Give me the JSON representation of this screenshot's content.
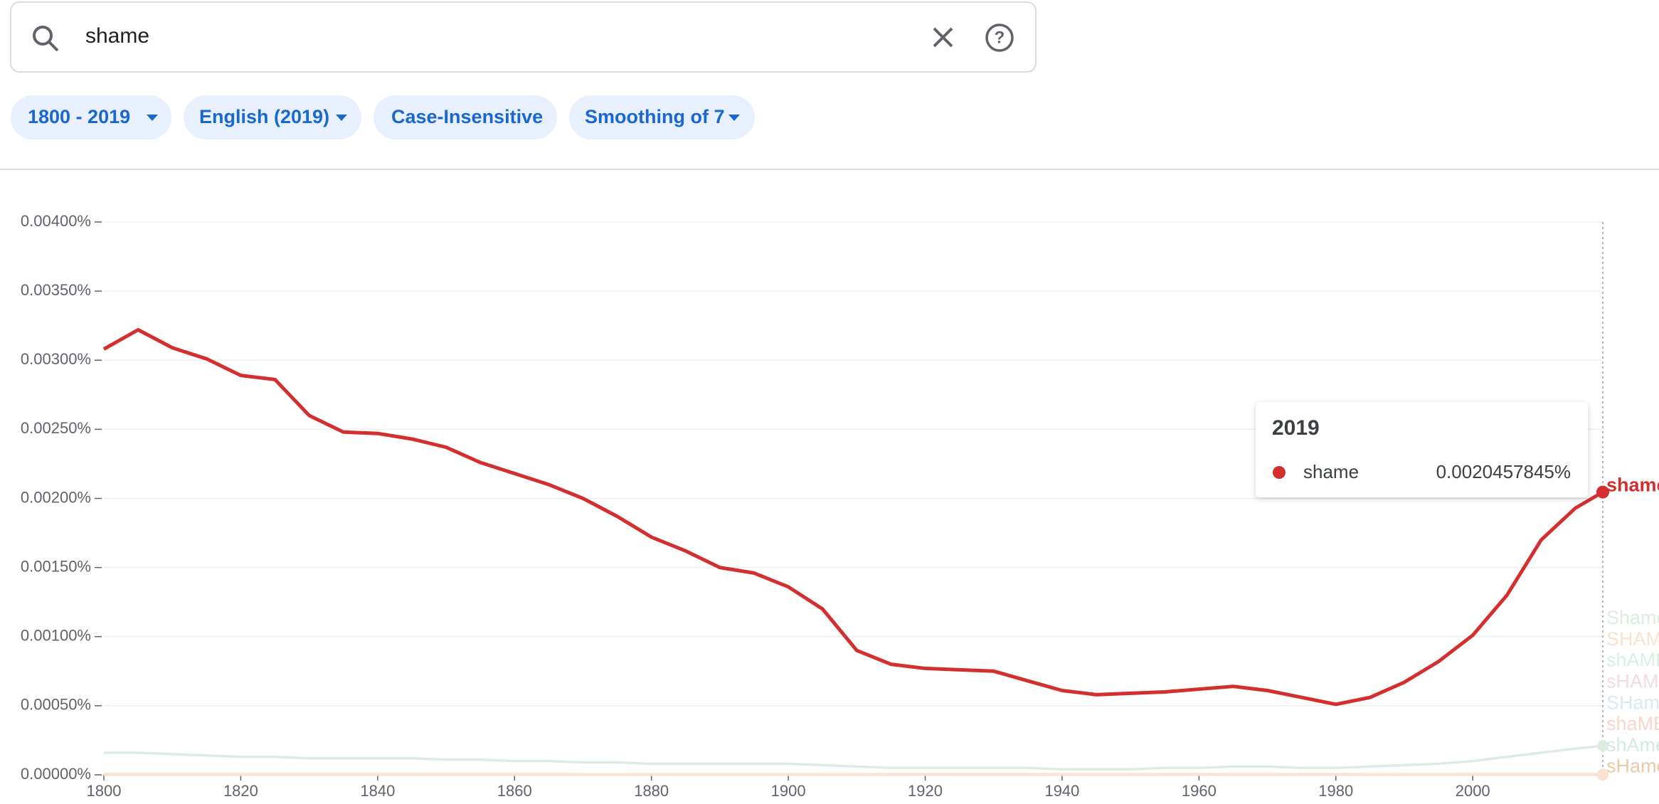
{
  "search": {
    "query": "shame"
  },
  "filters": [
    "1800 - 2019",
    "English (2019)",
    "Case-Insensitive",
    "Smoothing of 7"
  ],
  "chart_data": {
    "type": "line",
    "x": [
      1800,
      1805,
      1810,
      1815,
      1820,
      1825,
      1830,
      1835,
      1840,
      1845,
      1850,
      1855,
      1860,
      1865,
      1870,
      1875,
      1880,
      1885,
      1890,
      1895,
      1900,
      1905,
      1910,
      1915,
      1920,
      1925,
      1930,
      1935,
      1940,
      1945,
      1950,
      1955,
      1960,
      1965,
      1970,
      1975,
      1980,
      1985,
      1990,
      1995,
      2000,
      2005,
      2010,
      2015,
      2019
    ],
    "series": [
      {
        "name": "shame",
        "color": "#d32f2f",
        "values": [
          0.00308,
          0.00322,
          0.00309,
          0.00301,
          0.00289,
          0.00286,
          0.0026,
          0.00248,
          0.00247,
          0.00243,
          0.00237,
          0.00226,
          0.00218,
          0.0021,
          0.002,
          0.00187,
          0.00172,
          0.00162,
          0.0015,
          0.00146,
          0.00136,
          0.0012,
          0.0009,
          0.0008,
          0.00077,
          0.00076,
          0.00075,
          0.00068,
          0.00061,
          0.00058,
          0.00059,
          0.0006,
          0.00062,
          0.00064,
          0.00061,
          0.00056,
          0.00051,
          0.00056,
          0.00067,
          0.00082,
          0.00101,
          0.0013,
          0.0017,
          0.00193,
          0.0020457845
        ]
      },
      {
        "name": "Shame",
        "color": "#dcece1",
        "values": [
          0.00016,
          0.00016,
          0.00015,
          0.00014,
          0.00013,
          0.00013,
          0.00012,
          0.00012,
          0.00012,
          0.00012,
          0.00011,
          0.00011,
          0.0001,
          0.0001,
          9e-05,
          9e-05,
          8e-05,
          8e-05,
          8e-05,
          8e-05,
          8e-05,
          7e-05,
          6e-05,
          5e-05,
          5e-05,
          5e-05,
          5e-05,
          5e-05,
          4e-05,
          4e-05,
          4e-05,
          5e-05,
          5e-05,
          6e-05,
          6e-05,
          5e-05,
          5e-05,
          6e-05,
          7e-05,
          8e-05,
          0.0001,
          0.00013,
          0.00016,
          0.00019,
          0.00021
        ]
      },
      {
        "name": "SHAME",
        "color": "#fbe1cf",
        "values": [
          2e-06,
          2e-06,
          2e-06,
          2e-06,
          2e-06,
          2e-06,
          2e-06,
          2e-06,
          2e-06,
          2e-06,
          2e-06,
          2e-06,
          2e-06,
          2e-06,
          2e-06,
          2e-06,
          2e-06,
          2e-06,
          2e-06,
          2e-06,
          2e-06,
          2e-06,
          2e-06,
          2e-06,
          2e-06,
          2e-06,
          2e-06,
          2e-06,
          2e-06,
          2e-06,
          2e-06,
          2e-06,
          2e-06,
          2e-06,
          2e-06,
          2e-06,
          2e-06,
          2e-06,
          2e-06,
          2e-06,
          2e-06,
          2e-06,
          2e-06,
          2e-06,
          2e-06
        ]
      },
      {
        "name": "shAME",
        "color": "#dbeee2",
        "values": [
          1e-06,
          1e-06,
          1e-06,
          1e-06,
          1e-06,
          1e-06,
          1e-06,
          1e-06,
          1e-06,
          1e-06,
          1e-06,
          1e-06,
          1e-06,
          1e-06,
          1e-06,
          1e-06,
          1e-06,
          1e-06,
          1e-06,
          1e-06,
          1e-06,
          1e-06,
          1e-06,
          1e-06,
          1e-06,
          1e-06,
          1e-06,
          1e-06,
          1e-06,
          1e-06,
          1e-06,
          1e-06,
          1e-06,
          1e-06,
          1e-06,
          1e-06,
          1e-06,
          1e-06,
          1e-06,
          1e-06,
          1e-06,
          1e-06,
          1e-06,
          1e-06,
          1e-06
        ]
      },
      {
        "name": "sHAME",
        "color": "#f5dadf",
        "values": [
          1e-06,
          1e-06,
          1e-06,
          1e-06,
          1e-06,
          1e-06,
          1e-06,
          1e-06,
          1e-06,
          1e-06,
          1e-06,
          1e-06,
          1e-06,
          1e-06,
          1e-06,
          1e-06,
          1e-06,
          1e-06,
          1e-06,
          1e-06,
          1e-06,
          1e-06,
          1e-06,
          1e-06,
          1e-06,
          1e-06,
          1e-06,
          1e-06,
          1e-06,
          1e-06,
          1e-06,
          1e-06,
          1e-06,
          1e-06,
          1e-06,
          1e-06,
          1e-06,
          1e-06,
          1e-06,
          1e-06,
          1e-06,
          1e-06,
          1e-06,
          1e-06,
          1e-06
        ]
      },
      {
        "name": "SHame",
        "color": "#d8e9f5",
        "values": [
          1e-06,
          1e-06,
          1e-06,
          1e-06,
          1e-06,
          1e-06,
          1e-06,
          1e-06,
          1e-06,
          1e-06,
          1e-06,
          1e-06,
          1e-06,
          1e-06,
          1e-06,
          1e-06,
          1e-06,
          1e-06,
          1e-06,
          1e-06,
          1e-06,
          1e-06,
          1e-06,
          1e-06,
          1e-06,
          1e-06,
          1e-06,
          1e-06,
          1e-06,
          1e-06,
          1e-06,
          1e-06,
          1e-06,
          1e-06,
          1e-06,
          1e-06,
          1e-06,
          1e-06,
          1e-06,
          1e-06,
          1e-06,
          1e-06,
          1e-06,
          1e-06,
          1e-06
        ]
      },
      {
        "name": "shaME",
        "color": "#fad5cd",
        "values": [
          1e-06,
          1e-06,
          1e-06,
          1e-06,
          1e-06,
          1e-06,
          1e-06,
          1e-06,
          1e-06,
          1e-06,
          1e-06,
          1e-06,
          1e-06,
          1e-06,
          1e-06,
          1e-06,
          1e-06,
          1e-06,
          1e-06,
          1e-06,
          1e-06,
          1e-06,
          1e-06,
          1e-06,
          1e-06,
          1e-06,
          1e-06,
          1e-06,
          1e-06,
          1e-06,
          1e-06,
          1e-06,
          1e-06,
          1e-06,
          1e-06,
          1e-06,
          1e-06,
          1e-06,
          1e-06,
          1e-06,
          1e-06,
          1e-06,
          1e-06,
          1e-06,
          1e-06
        ]
      },
      {
        "name": "shAme",
        "color": "#d3eae3",
        "values": [
          1e-06,
          1e-06,
          1e-06,
          1e-06,
          1e-06,
          1e-06,
          1e-06,
          1e-06,
          1e-06,
          1e-06,
          1e-06,
          1e-06,
          1e-06,
          1e-06,
          1e-06,
          1e-06,
          1e-06,
          1e-06,
          1e-06,
          1e-06,
          1e-06,
          1e-06,
          1e-06,
          1e-06,
          1e-06,
          1e-06,
          1e-06,
          1e-06,
          1e-06,
          1e-06,
          1e-06,
          1e-06,
          1e-06,
          1e-06,
          1e-06,
          1e-06,
          1e-06,
          1e-06,
          1e-06,
          1e-06,
          1e-06,
          1e-06,
          1e-06,
          1e-06,
          1e-06
        ]
      },
      {
        "name": "sHame",
        "color": "#e9c9a8",
        "values": [
          3e-06,
          3e-06,
          3e-06,
          3e-06,
          3e-06,
          3e-06,
          3e-06,
          3e-06,
          3e-06,
          3e-06,
          3e-06,
          3e-06,
          3e-06,
          3e-06,
          3e-06,
          3e-06,
          3e-06,
          3e-06,
          3e-06,
          3e-06,
          3e-06,
          3e-06,
          3e-06,
          3e-06,
          3e-06,
          3e-06,
          3e-06,
          3e-06,
          3e-06,
          3e-06,
          3e-06,
          3e-06,
          3e-06,
          3e-06,
          3e-06,
          3e-06,
          3e-06,
          3e-06,
          3e-06,
          3e-06,
          3e-06,
          3e-06,
          3e-06,
          3e-06,
          3e-06
        ]
      }
    ],
    "xlim": [
      1800,
      2019
    ],
    "xticks": [
      1800,
      1820,
      1840,
      1860,
      1880,
      1900,
      1920,
      1940,
      1960,
      1980,
      2000
    ],
    "ylim": [
      0,
      0.004
    ],
    "yticks": [
      {
        "value": 0,
        "label": "0.00000%"
      },
      {
        "value": 0.0005,
        "label": "0.00050%"
      },
      {
        "value": 0.001,
        "label": "0.00100%"
      },
      {
        "value": 0.0015,
        "label": "0.00150%"
      },
      {
        "value": 0.002,
        "label": "0.00200%"
      },
      {
        "value": 0.0025,
        "label": "0.00250%"
      },
      {
        "value": 0.003,
        "label": "0.00300%"
      },
      {
        "value": 0.0035,
        "label": "0.00350%"
      },
      {
        "value": 0.004,
        "label": "0.00400%"
      }
    ],
    "grid": true,
    "tooltip": {
      "value_label": "0.0020457845%"
    }
  }
}
